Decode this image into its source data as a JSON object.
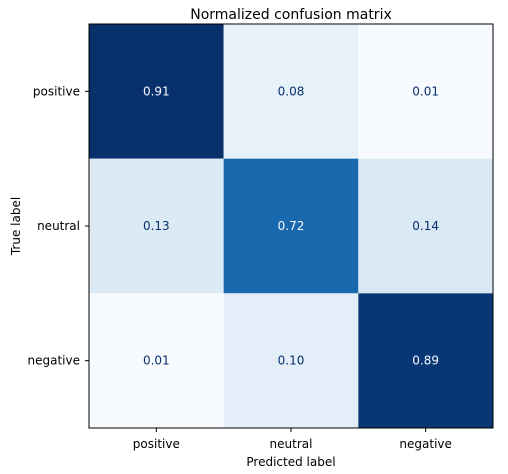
{
  "chart_data": {
    "type": "heatmap",
    "title": "Normalized confusion matrix",
    "xlabel": "Predicted label",
    "ylabel": "True label",
    "x_categories": [
      "positive",
      "neutral",
      "negative"
    ],
    "y_categories": [
      "positive",
      "neutral",
      "negative"
    ],
    "values": [
      [
        0.91,
        0.08,
        0.01
      ],
      [
        0.13,
        0.72,
        0.14
      ],
      [
        0.01,
        0.1,
        0.89
      ]
    ],
    "value_format": "0.00",
    "colormap": "Blues",
    "vmin": 0.01,
    "vmax": 0.91,
    "colorbar": false,
    "grid": false
  }
}
